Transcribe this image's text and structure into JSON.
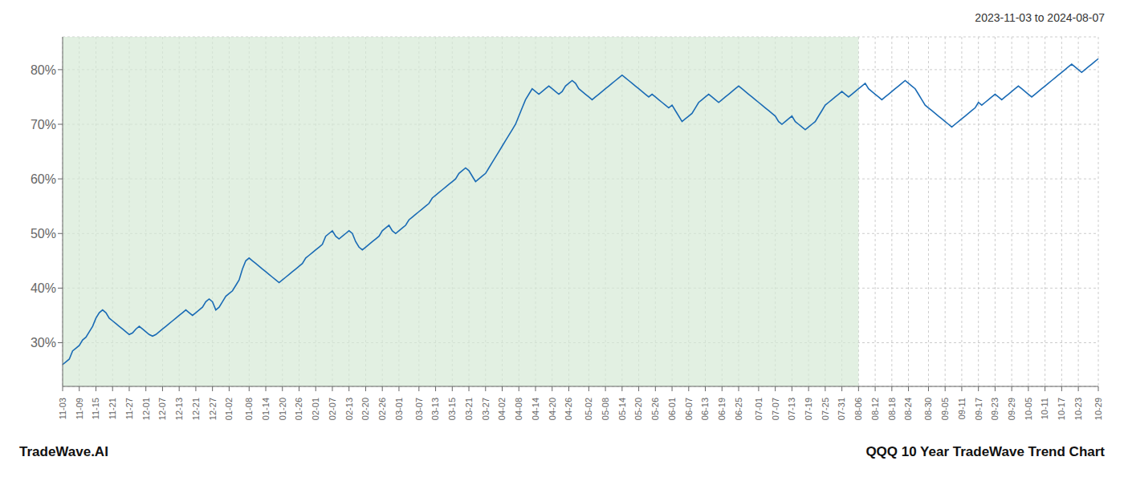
{
  "chart_data": {
    "type": "line",
    "title": "QQQ 10 Year TradeWave Trend Chart",
    "subtitle": "2023-11-03 to 2024-08-07",
    "annotations": [
      "TradeWave.AI"
    ],
    "color": "#1a6bb5",
    "grid": true,
    "ylim": [
      22,
      86
    ],
    "yticks": [
      {
        "value": 30,
        "label": "30%"
      },
      {
        "value": 40,
        "label": "40%"
      },
      {
        "value": 50,
        "label": "50%"
      },
      {
        "value": 60,
        "label": "60%"
      },
      {
        "value": 70,
        "label": "70%"
      },
      {
        "value": 80,
        "label": "80%"
      }
    ],
    "shaded": {
      "until": "08-06",
      "color": "#d6ead6"
    },
    "categories": [
      "11-03",
      null,
      null,
      null,
      null,
      "11-09",
      null,
      null,
      null,
      null,
      "11-15",
      null,
      null,
      null,
      null,
      "11-21",
      null,
      null,
      null,
      null,
      "11-27",
      null,
      null,
      null,
      null,
      "12-01",
      null,
      null,
      null,
      null,
      "12-07",
      null,
      null,
      null,
      null,
      "12-13",
      null,
      null,
      null,
      null,
      "12-21",
      null,
      null,
      null,
      null,
      "12-27",
      null,
      null,
      null,
      null,
      "01-02",
      null,
      null,
      null,
      null,
      null,
      "01-08",
      null,
      null,
      null,
      null,
      "01-14",
      null,
      null,
      null,
      null,
      "01-20",
      null,
      null,
      null,
      null,
      "01-26",
      null,
      null,
      null,
      null,
      "02-01",
      null,
      null,
      null,
      null,
      "02-07",
      null,
      null,
      null,
      null,
      "02-13",
      null,
      null,
      null,
      null,
      "02-20",
      null,
      null,
      null,
      null,
      "02-26",
      null,
      null,
      null,
      null,
      "03-01",
      null,
      null,
      null,
      null,
      null,
      "03-07",
      null,
      null,
      null,
      null,
      "03-13",
      null,
      null,
      null,
      null,
      "03-15",
      null,
      null,
      null,
      null,
      "03-21",
      null,
      null,
      null,
      null,
      "03-27",
      null,
      null,
      null,
      null,
      "04-02",
      null,
      null,
      null,
      null,
      "04-08",
      null,
      null,
      null,
      null,
      "04-14",
      null,
      null,
      null,
      null,
      "04-20",
      null,
      null,
      null,
      null,
      "04-26",
      null,
      null,
      null,
      null,
      null,
      "05-02",
      null,
      null,
      null,
      null,
      "05-08",
      null,
      null,
      null,
      null,
      "05-14",
      null,
      null,
      null,
      null,
      "05-20",
      null,
      null,
      null,
      null,
      "05-26",
      null,
      null,
      null,
      null,
      "06-01",
      null,
      null,
      null,
      null,
      "06-07",
      null,
      null,
      null,
      null,
      "06-13",
      null,
      null,
      null,
      null,
      "06-19",
      null,
      null,
      null,
      null,
      "06-25",
      null,
      null,
      null,
      null,
      null,
      "07-01",
      null,
      null,
      null,
      null,
      "07-07",
      null,
      null,
      null,
      null,
      "07-13",
      null,
      null,
      null,
      null,
      "07-19",
      null,
      null,
      null,
      null,
      "07-25",
      null,
      null,
      null,
      null,
      "07-31",
      null,
      null,
      null,
      null,
      "08-06",
      null,
      null,
      null,
      null,
      "08-12",
      null,
      null,
      null,
      null,
      "08-18",
      null,
      null,
      null,
      null,
      "08-24",
      null,
      null,
      null,
      null,
      null,
      "08-30",
      null,
      null,
      null,
      null,
      "09-05",
      null,
      null,
      null,
      null,
      "09-11",
      null,
      null,
      null,
      null,
      "09-17",
      null,
      null,
      null,
      null,
      "09-23",
      null,
      null,
      null,
      null,
      "09-29",
      null,
      null,
      null,
      null,
      "10-05",
      null,
      null,
      null,
      null,
      "10-11",
      null,
      null,
      null,
      null,
      "10-17",
      null,
      null,
      null,
      null,
      "10-23",
      null,
      null,
      null,
      null,
      null,
      "10-29"
    ],
    "values": [
      26.0,
      26.5,
      27.0,
      28.5,
      29.0,
      29.5,
      30.5,
      31.0,
      32.0,
      33.0,
      34.5,
      35.5,
      36.0,
      35.5,
      34.5,
      34.0,
      33.5,
      33.0,
      32.5,
      32.0,
      31.5,
      31.8,
      32.5,
      33.0,
      32.5,
      32.0,
      31.5,
      31.2,
      31.5,
      32.0,
      32.5,
      33.0,
      33.5,
      34.0,
      34.5,
      35.0,
      35.5,
      36.0,
      35.5,
      35.0,
      35.5,
      36.0,
      36.5,
      37.5,
      38.0,
      37.5,
      36.0,
      36.5,
      37.5,
      38.5,
      39.0,
      39.5,
      40.5,
      41.5,
      43.5,
      45.0,
      45.5,
      45.0,
      44.5,
      44.0,
      43.5,
      43.0,
      42.5,
      42.0,
      41.5,
      41.0,
      41.5,
      42.0,
      42.5,
      43.0,
      43.5,
      44.0,
      44.5,
      45.5,
      46.0,
      46.5,
      47.0,
      47.5,
      48.0,
      49.5,
      50.0,
      50.5,
      49.5,
      49.0,
      49.5,
      50.0,
      50.5,
      50.0,
      48.5,
      47.5,
      47.0,
      47.5,
      48.0,
      48.5,
      49.0,
      49.5,
      50.5,
      51.0,
      51.5,
      50.5,
      50.0,
      50.5,
      51.0,
      51.5,
      52.5,
      53.0,
      53.5,
      54.0,
      54.5,
      55.0,
      55.5,
      56.5,
      57.0,
      57.5,
      58.0,
      58.5,
      59.0,
      59.5,
      60.0,
      61.0,
      61.5,
      62.0,
      61.5,
      60.5,
      59.5,
      60.0,
      60.5,
      61.0,
      62.0,
      63.0,
      64.0,
      65.0,
      66.0,
      67.0,
      68.0,
      69.0,
      70.0,
      71.5,
      73.0,
      74.5,
      75.5,
      76.5,
      76.0,
      75.5,
      76.0,
      76.5,
      77.0,
      76.5,
      76.0,
      75.5,
      76.0,
      77.0,
      77.5,
      78.0,
      77.5,
      76.5,
      76.0,
      75.5,
      75.0,
      74.5,
      75.0,
      75.5,
      76.0,
      76.5,
      77.0,
      77.5,
      78.0,
      78.5,
      79.0,
      78.5,
      78.0,
      77.5,
      77.0,
      76.5,
      76.0,
      75.5,
      75.0,
      75.5,
      75.0,
      74.5,
      74.0,
      73.5,
      73.0,
      73.5,
      72.5,
      71.5,
      70.5,
      71.0,
      71.5,
      72.0,
      73.0,
      74.0,
      74.5,
      75.0,
      75.5,
      75.0,
      74.5,
      74.0,
      74.5,
      75.0,
      75.5,
      76.0,
      76.5,
      77.0,
      76.5,
      76.0,
      75.5,
      75.0,
      74.5,
      74.0,
      73.5,
      73.0,
      72.5,
      72.0,
      71.5,
      70.5,
      70.0,
      70.5,
      71.0,
      71.5,
      70.5,
      70.0,
      69.5,
      69.0,
      69.5,
      70.0,
      70.5,
      71.5,
      72.5,
      73.5,
      74.0,
      74.5,
      75.0,
      75.5,
      76.0,
      75.5,
      75.0,
      75.5,
      76.0,
      76.5,
      77.0,
      77.5,
      76.5,
      76.0,
      75.5,
      75.0,
      74.5,
      75.0,
      75.5,
      76.0,
      76.5,
      77.0,
      77.5,
      78.0,
      77.5,
      77.0,
      76.5,
      75.5,
      74.5,
      73.5,
      73.0,
      72.5,
      72.0,
      71.5,
      71.0,
      70.5,
      70.0,
      69.5,
      70.0,
      70.5,
      71.0,
      71.5,
      72.0,
      72.5,
      73.0,
      74.0,
      73.5,
      74.0,
      74.5,
      75.0,
      75.5,
      75.0,
      74.5,
      75.0,
      75.5,
      76.0,
      76.5,
      77.0,
      76.5,
      76.0,
      75.5,
      75.0,
      75.5,
      76.0,
      76.5,
      77.0,
      77.5,
      78.0,
      78.5,
      79.0,
      79.5,
      80.0,
      80.5,
      81.0,
      80.5,
      80.0,
      79.5,
      80.0,
      80.5,
      81.0,
      81.5,
      82.0
    ]
  }
}
